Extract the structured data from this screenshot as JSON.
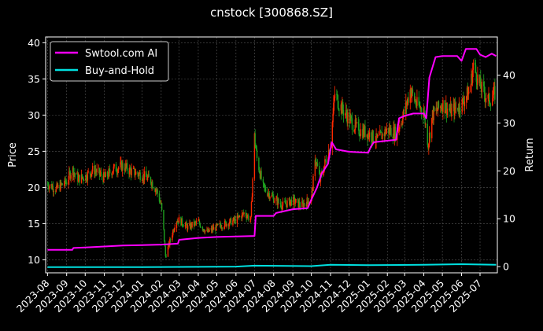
{
  "chart_data": {
    "type": "line",
    "title": "cnstock [300868.SZ]",
    "ylabel_left": "Price",
    "ylabel_right": "Return",
    "ylim_left": [
      8.2,
      40.8
    ],
    "ylim_right": [
      -1.3,
      48
    ],
    "yticks_left": [
      10,
      15,
      20,
      25,
      30,
      35,
      40
    ],
    "yticks_right": [
      0,
      10,
      20,
      30,
      40
    ],
    "x_tick_labels": [
      "2023-08",
      "2023-09",
      "2023-10",
      "2023-11",
      "2023-12",
      "2024-01",
      "2024-02",
      "2024-03",
      "2024-04",
      "2024-05",
      "2024-06",
      "2024-07",
      "2024-08",
      "2024-09",
      "2024-10",
      "2024-11",
      "2024-12",
      "2025-01",
      "2025-02",
      "2025-03",
      "2025-04",
      "2025-05",
      "2025-06",
      "2025-07"
    ],
    "grid": true,
    "legend_position": "top-left",
    "candle_up_color": "#ff2a00",
    "candle_down_color": "#1fa01f",
    "price_points": [
      [
        "2023-08-01",
        20.5
      ],
      [
        "2023-08-15",
        19.8
      ],
      [
        "2023-09-01",
        20.8
      ],
      [
        "2023-09-10",
        22.5
      ],
      [
        "2023-09-20",
        21.2
      ],
      [
        "2023-10-01",
        21.5
      ],
      [
        "2023-10-15",
        22.5
      ],
      [
        "2023-11-01",
        21.3
      ],
      [
        "2023-11-15",
        22.5
      ],
      [
        "2023-12-01",
        23.0
      ],
      [
        "2023-12-15",
        22.2
      ],
      [
        "2024-01-01",
        21.7
      ],
      [
        "2024-01-15",
        21.0
      ],
      [
        "2024-01-25",
        19.5
      ],
      [
        "2024-02-01",
        17.5
      ],
      [
        "2024-02-05",
        14.0
      ],
      [
        "2024-02-08",
        10.5
      ],
      [
        "2024-02-15",
        12.5
      ],
      [
        "2024-02-25",
        15.5
      ],
      [
        "2024-03-01",
        15.5
      ],
      [
        "2024-03-15",
        14.5
      ],
      [
        "2024-04-01",
        15.2
      ],
      [
        "2024-04-15",
        13.8
      ],
      [
        "2024-05-01",
        14.5
      ],
      [
        "2024-05-15",
        15.0
      ],
      [
        "2024-06-01",
        15.5
      ],
      [
        "2024-06-15",
        16.5
      ],
      [
        "2024-06-25",
        15.5
      ],
      [
        "2024-07-01",
        27.0
      ],
      [
        "2024-07-05",
        24.0
      ],
      [
        "2024-07-15",
        20.0
      ],
      [
        "2024-08-01",
        18.5
      ],
      [
        "2024-08-15",
        17.5
      ],
      [
        "2024-09-01",
        18.2
      ],
      [
        "2024-09-15",
        17.5
      ],
      [
        "2024-10-01",
        18.5
      ],
      [
        "2024-10-08",
        24.0
      ],
      [
        "2024-10-15",
        21.0
      ],
      [
        "2024-11-01",
        26.0
      ],
      [
        "2024-11-08",
        33.0
      ],
      [
        "2024-11-15",
        31.5
      ],
      [
        "2024-12-01",
        29.5
      ],
      [
        "2024-12-15",
        28.0
      ],
      [
        "2025-01-01",
        27.5
      ],
      [
        "2025-01-15",
        26.5
      ],
      [
        "2025-02-01",
        28.0
      ],
      [
        "2025-02-15",
        27.5
      ],
      [
        "2025-03-01",
        30.5
      ],
      [
        "2025-03-10",
        33.5
      ],
      [
        "2025-03-20",
        31.5
      ],
      [
        "2025-04-01",
        30.5
      ],
      [
        "2025-04-08",
        26.0
      ],
      [
        "2025-04-15",
        30.0
      ],
      [
        "2025-05-01",
        31.5
      ],
      [
        "2025-05-15",
        30.5
      ],
      [
        "2025-06-01",
        31.5
      ],
      [
        "2025-06-15",
        33.5
      ],
      [
        "2025-06-20",
        37.0
      ],
      [
        "2025-07-01",
        34.0
      ],
      [
        "2025-07-15",
        32.0
      ],
      [
        "2025-07-25",
        33.0
      ]
    ],
    "series": [
      {
        "name": "Swtool.com AI",
        "color": "#ff00ff",
        "points": [
          [
            "2023-08-01",
            3.5
          ],
          [
            "2023-09-10",
            3.5
          ],
          [
            "2023-09-12",
            3.9
          ],
          [
            "2023-10-01",
            4.0
          ],
          [
            "2023-11-01",
            4.2
          ],
          [
            "2023-12-01",
            4.4
          ],
          [
            "2024-01-01",
            4.5
          ],
          [
            "2024-02-01",
            4.6
          ],
          [
            "2024-02-28",
            4.8
          ],
          [
            "2024-03-01",
            5.6
          ],
          [
            "2024-04-01",
            6.0
          ],
          [
            "2024-05-01",
            6.2
          ],
          [
            "2024-06-01",
            6.3
          ],
          [
            "2024-07-01",
            6.4
          ],
          [
            "2024-07-03",
            10.6
          ],
          [
            "2024-08-01",
            10.6
          ],
          [
            "2024-08-05",
            11.2
          ],
          [
            "2024-09-01",
            12.0
          ],
          [
            "2024-09-25",
            12.2
          ],
          [
            "2024-10-01",
            14.0
          ],
          [
            "2024-10-10",
            16.5
          ],
          [
            "2024-10-18",
            19.5
          ],
          [
            "2024-10-28",
            21.5
          ],
          [
            "2024-11-01",
            24.5
          ],
          [
            "2024-11-03",
            26.0
          ],
          [
            "2024-11-10",
            24.5
          ],
          [
            "2024-12-01",
            24.0
          ],
          [
            "2025-01-01",
            23.8
          ],
          [
            "2025-01-05",
            25.0
          ],
          [
            "2025-01-10",
            26.0
          ],
          [
            "2025-02-15",
            26.5
          ],
          [
            "2025-02-20",
            31.0
          ],
          [
            "2025-03-01",
            31.5
          ],
          [
            "2025-03-15",
            32.0
          ],
          [
            "2025-04-01",
            32.0
          ],
          [
            "2025-04-05",
            31.0
          ],
          [
            "2025-04-10",
            39.5
          ],
          [
            "2025-04-20",
            43.8
          ],
          [
            "2025-05-01",
            44.0
          ],
          [
            "2025-05-25",
            44.0
          ],
          [
            "2025-06-01",
            43.0
          ],
          [
            "2025-06-08",
            45.5
          ],
          [
            "2025-06-25",
            45.5
          ],
          [
            "2025-07-01",
            44.3
          ],
          [
            "2025-07-10",
            43.8
          ],
          [
            "2025-07-20",
            44.5
          ],
          [
            "2025-07-27",
            44.0
          ]
        ]
      },
      {
        "name": "Buy-and-Hold",
        "color": "#00e0e0",
        "points": [
          [
            "2023-08-01",
            -0.1
          ],
          [
            "2024-01-01",
            -0.1
          ],
          [
            "2024-06-01",
            0.0
          ],
          [
            "2024-07-01",
            0.2
          ],
          [
            "2024-10-01",
            0.1
          ],
          [
            "2024-11-01",
            0.4
          ],
          [
            "2025-01-01",
            0.3
          ],
          [
            "2025-04-01",
            0.4
          ],
          [
            "2025-06-01",
            0.5
          ],
          [
            "2025-07-27",
            0.4
          ]
        ]
      }
    ]
  }
}
